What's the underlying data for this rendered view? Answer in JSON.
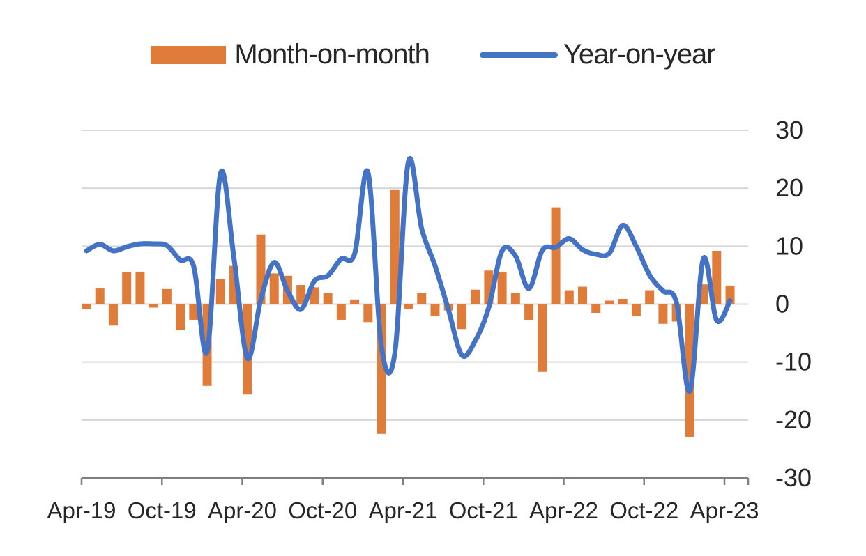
{
  "legend": {
    "items": [
      {
        "label": "Month-on-month",
        "series_type": "bar",
        "swatch": "orange-rect-icon"
      },
      {
        "label": "Year-on-year",
        "series_type": "line",
        "swatch": "blue-line-icon"
      }
    ]
  },
  "colors": {
    "bar": "#E07C3A",
    "line": "#4472C4",
    "grid": "#D6D6D6",
    "axis": "#7F7F7F",
    "text": "#262626",
    "background": "#FFFFFF"
  },
  "chart_data": {
    "type": "combo_bar_line",
    "title": "",
    "xlabel": "",
    "ylabel": "",
    "ylim": [
      -30,
      30
    ],
    "y_ticks": [
      30,
      20,
      10,
      0,
      -10,
      -20,
      -30
    ],
    "x_tick_labels": [
      "Apr-19",
      "Oct-19",
      "Apr-20",
      "Oct-20",
      "Apr-21",
      "Oct-21",
      "Apr-22",
      "Oct-22",
      "Apr-23"
    ],
    "grid": true,
    "legend_position": "top",
    "categories": [
      "Apr-19",
      "May-19",
      "Jun-19",
      "Jul-19",
      "Aug-19",
      "Sep-19",
      "Oct-19",
      "Nov-19",
      "Dec-19",
      "Jan-20",
      "Feb-20",
      "Mar-20",
      "Apr-20",
      "May-20",
      "Jun-20",
      "Jul-20",
      "Aug-20",
      "Sep-20",
      "Oct-20",
      "Nov-20",
      "Dec-20",
      "Jan-21",
      "Feb-21",
      "Mar-21",
      "Apr-21",
      "May-21",
      "Jun-21",
      "Jul-21",
      "Aug-21",
      "Sep-21",
      "Oct-21",
      "Nov-21",
      "Dec-21",
      "Jan-22",
      "Feb-22",
      "Mar-22",
      "Apr-22",
      "May-22",
      "Jun-22",
      "Jul-22",
      "Aug-22",
      "Sep-22",
      "Oct-22",
      "Nov-22",
      "Dec-22",
      "Jan-23",
      "Feb-23",
      "Mar-23",
      "Apr-23"
    ],
    "series": [
      {
        "name": "Month-on-month",
        "type": "bar",
        "color": "#E07C3A",
        "values": [
          -0.8,
          2.7,
          -3.7,
          5.5,
          5.6,
          -0.6,
          2.6,
          -4.5,
          -2.7,
          -14.1,
          4.3,
          6.6,
          -15.6,
          12.0,
          5.3,
          4.9,
          3.3,
          2.9,
          1.9,
          -2.7,
          0.8,
          -3.1,
          -22.4,
          19.8,
          -0.9,
          1.9,
          -2.0,
          -1.1,
          -4.3,
          2.5,
          5.8,
          5.6,
          1.9,
          -2.7,
          -11.7,
          16.7,
          2.4,
          3.0,
          -1.5,
          0.6,
          0.9,
          -2.1,
          2.4,
          -3.4,
          -3.0,
          -22.9,
          3.4,
          9.2,
          3.2
        ]
      },
      {
        "name": "Year-on-year",
        "type": "line",
        "color": "#4472C4",
        "values": [
          9.2,
          10.3,
          9.2,
          9.9,
          10.4,
          10.4,
          10.1,
          7.6,
          6.5,
          -8.2,
          22.6,
          8.0,
          -9.3,
          0.8,
          7.2,
          2.3,
          -0.9,
          4.0,
          4.9,
          7.8,
          8.7,
          22.7,
          -7.4,
          -8.4,
          24.5,
          13.0,
          6.6,
          -1.0,
          -8.8,
          -6.3,
          -0.6,
          9.2,
          8.3,
          2.7,
          9.3,
          9.8,
          11.3,
          9.4,
          8.6,
          8.8,
          13.6,
          10.0,
          5.0,
          2.3,
          0.3,
          -15.0,
          7.8,
          -2.8,
          0.6
        ]
      }
    ]
  }
}
